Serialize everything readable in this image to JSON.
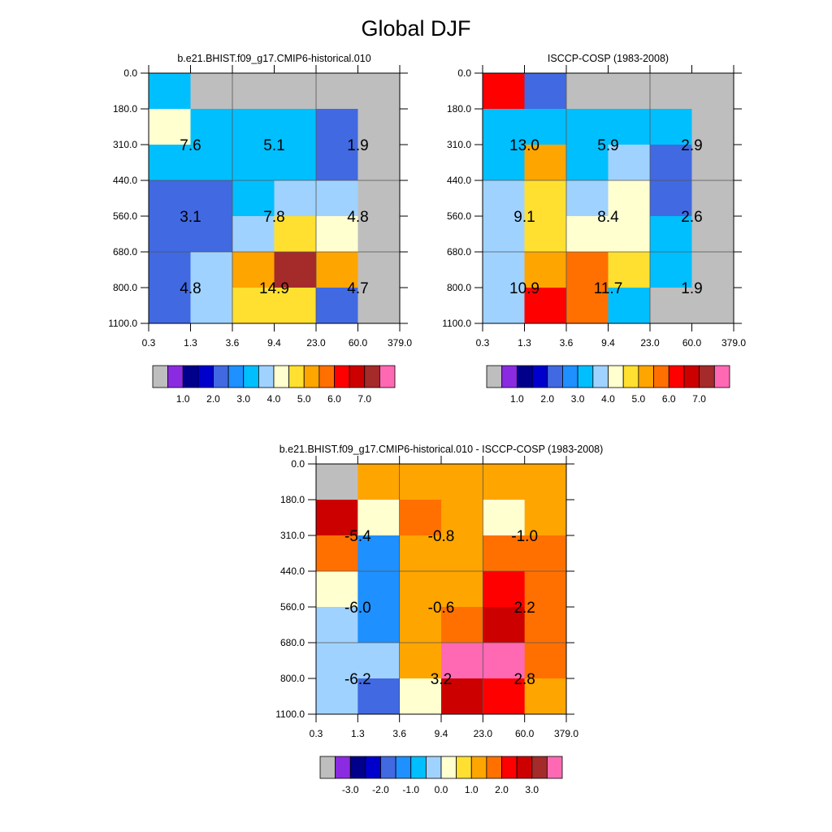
{
  "figure": {
    "title": "Global DJF"
  },
  "chart_data": [
    {
      "type": "heatmap",
      "title": "b.e21.BHIST.f09_g17.CMIP6-historical.010",
      "x_ticks": [
        "0.3",
        "1.3",
        "3.6",
        "9.4",
        "23.0",
        "60.0",
        "379.0"
      ],
      "y_ticks": [
        "0.0",
        "180.0",
        "310.0",
        "440.0",
        "560.0",
        "680.0",
        "800.0",
        "1100.0"
      ],
      "x_unit_label": "",
      "y_unit_label": "",
      "cells": [
        [
          1.5,
          null,
          null,
          null,
          null,
          null
        ],
        [
          2.5,
          1.5,
          1.5,
          1.5,
          0.8,
          null
        ],
        [
          1.5,
          1.5,
          1.5,
          1.5,
          0.8,
          null
        ],
        [
          0.8,
          0.8,
          1.5,
          2.0,
          2.0,
          null
        ],
        [
          0.8,
          0.8,
          2.0,
          3.0,
          2.5,
          null
        ],
        [
          0.8,
          2.0,
          3.8,
          5.8,
          3.5,
          null
        ],
        [
          0.8,
          2.0,
          3.0,
          3.0,
          0.8,
          null
        ]
      ],
      "annotations": [
        {
          "text": "7.6",
          "col": 1,
          "row": 2
        },
        {
          "text": "5.1",
          "col": 3,
          "row": 2
        },
        {
          "text": "1.9",
          "col": 5,
          "row": 2
        },
        {
          "text": "3.1",
          "col": 1,
          "row": 4
        },
        {
          "text": "7.8",
          "col": 3,
          "row": 4
        },
        {
          "text": "4.8",
          "col": 5,
          "row": 4
        },
        {
          "text": "4.8",
          "col": 1,
          "row": 6
        },
        {
          "text": "14.9",
          "col": 3,
          "row": 6
        },
        {
          "text": "4.7",
          "col": 5,
          "row": 6
        }
      ],
      "colorbar": {
        "colors": [
          "#bebebe",
          "#8a2be2",
          "#00008b",
          "#0000cd",
          "#4169e1",
          "#1e90ff",
          "#00bfff",
          "#a0d2ff",
          "#ffffd0",
          "#ffe030",
          "#ffa500",
          "#ff7000",
          "#ff0000",
          "#cd0000",
          "#a52a2a",
          "#ff69b4"
        ],
        "labels": [
          "1.0",
          "2.0",
          "3.0",
          "4.0",
          "5.0",
          "6.0",
          "7.0"
        ]
      }
    },
    {
      "type": "heatmap",
      "title": "ISCCP-COSP (1983-2008)",
      "x_ticks": [
        "0.3",
        "1.3",
        "3.6",
        "9.4",
        "23.0",
        "60.0",
        "379.0"
      ],
      "y_ticks": [
        "0.0",
        "180.0",
        "310.0",
        "440.0",
        "560.0",
        "680.0",
        "800.0",
        "1100.0"
      ],
      "cells": [
        [
          4.8,
          0.8,
          null,
          null,
          null,
          null
        ],
        [
          1.5,
          1.5,
          1.5,
          1.5,
          1.5,
          null
        ],
        [
          1.5,
          3.5,
          1.5,
          2.0,
          0.8,
          null
        ],
        [
          2.0,
          3.0,
          2.0,
          2.5,
          0.8,
          null
        ],
        [
          2.0,
          3.0,
          2.5,
          2.5,
          1.5,
          null
        ],
        [
          2.0,
          3.5,
          4.0,
          3.0,
          1.5,
          null
        ],
        [
          2.0,
          4.5,
          4.0,
          1.5,
          null,
          null
        ]
      ],
      "annotations": [
        {
          "text": "13.0",
          "col": 1,
          "row": 2
        },
        {
          "text": "5.9",
          "col": 3,
          "row": 2
        },
        {
          "text": "2.9",
          "col": 5,
          "row": 2
        },
        {
          "text": "9.1",
          "col": 1,
          "row": 4
        },
        {
          "text": "8.4",
          "col": 3,
          "row": 4
        },
        {
          "text": "2.6",
          "col": 5,
          "row": 4
        },
        {
          "text": "10.9",
          "col": 1,
          "row": 6
        },
        {
          "text": "11.7",
          "col": 3,
          "row": 6
        },
        {
          "text": "1.9",
          "col": 5,
          "row": 6
        }
      ],
      "colorbar": {
        "colors": [
          "#bebebe",
          "#8a2be2",
          "#00008b",
          "#0000cd",
          "#4169e1",
          "#1e90ff",
          "#00bfff",
          "#a0d2ff",
          "#ffffd0",
          "#ffe030",
          "#ffa500",
          "#ff7000",
          "#ff0000",
          "#cd0000",
          "#a52a2a",
          "#ff69b4"
        ],
        "labels": [
          "1.0",
          "2.0",
          "3.0",
          "4.0",
          "5.0",
          "6.0",
          "7.0"
        ]
      }
    },
    {
      "type": "heatmap",
      "title": "b.e21.BHIST.f09_g17.CMIP6-historical.010 - ISCCP-COSP (1983-2008)",
      "x_ticks": [
        "0.3",
        "1.3",
        "3.6",
        "9.4",
        "23.0",
        "60.0",
        "379.0"
      ],
      "y_ticks": [
        "0.0",
        "180.0",
        "310.0",
        "440.0",
        "560.0",
        "680.0",
        "800.0",
        "1100.0"
      ],
      "cells": [
        [
          null,
          -0.3,
          -0.3,
          -0.3,
          -0.3,
          -0.3
        ],
        [
          1.3,
          -1.2,
          0.3,
          -0.3,
          -1.2,
          -0.3
        ],
        [
          0.3,
          -2.8,
          -0.3,
          -0.3,
          0.3,
          0.3
        ],
        [
          -1.2,
          -2.8,
          -0.3,
          -0.3,
          0.8,
          0.3
        ],
        [
          -1.8,
          -2.8,
          -0.3,
          0.3,
          1.3,
          0.3
        ],
        [
          -1.8,
          -1.8,
          -0.3,
          2.8,
          2.3,
          0.3
        ],
        [
          -1.8,
          -3.3,
          -1.2,
          1.3,
          0.8,
          -0.3
        ]
      ],
      "annotations": [
        {
          "text": "-5.4",
          "col": 1,
          "row": 2
        },
        {
          "text": "-0.8",
          "col": 3,
          "row": 2
        },
        {
          "text": "-1.0",
          "col": 5,
          "row": 2
        },
        {
          "text": "-6.0",
          "col": 1,
          "row": 4
        },
        {
          "text": "-0.6",
          "col": 3,
          "row": 4
        },
        {
          "text": "2.2",
          "col": 5,
          "row": 4
        },
        {
          "text": "-6.2",
          "col": 1,
          "row": 6
        },
        {
          "text": "3.2",
          "col": 3,
          "row": 6
        },
        {
          "text": "2.8",
          "col": 5,
          "row": 6
        }
      ],
      "colorbar": {
        "colors": [
          "#bebebe",
          "#8a2be2",
          "#00008b",
          "#0000cd",
          "#4169e1",
          "#1e90ff",
          "#00bfff",
          "#a0d2ff",
          "#ffffd0",
          "#ffe030",
          "#ffa500",
          "#ff7000",
          "#ff0000",
          "#cd0000",
          "#a52a2a",
          "#ff69b4"
        ],
        "labels": [
          "-3.0",
          "-2.0",
          "-1.0",
          "0.0",
          "1.0",
          "2.0",
          "3.0"
        ]
      }
    }
  ]
}
